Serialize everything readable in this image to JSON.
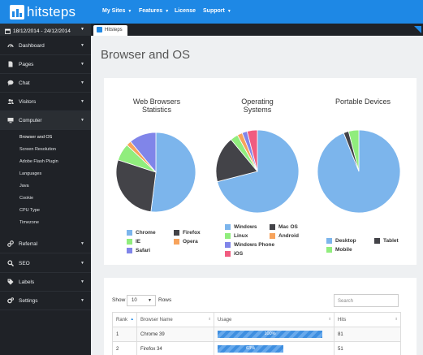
{
  "app": {
    "logo_text": "hitsteps",
    "brand_color": "#1e88e5"
  },
  "topnav": [
    {
      "label": "My Sites",
      "has_caret": true
    },
    {
      "label": "Features",
      "has_caret": true
    },
    {
      "label": "License",
      "has_caret": false
    },
    {
      "label": "Support",
      "has_caret": true
    }
  ],
  "sidebar": {
    "date_range": "18/12/2014 - 24/12/2014",
    "items": [
      {
        "label": "Dashboard",
        "icon": "dashboard-icon"
      },
      {
        "label": "Pages",
        "icon": "file-icon"
      },
      {
        "label": "Chat",
        "icon": "chat-bubble-icon"
      },
      {
        "label": "Visitors",
        "icon": "users-icon"
      },
      {
        "label": "Computer",
        "icon": "monitor-icon"
      },
      {
        "label": "Referral",
        "icon": "link-icon"
      },
      {
        "label": "SEO",
        "icon": "search-icon"
      },
      {
        "label": "Labels",
        "icon": "tag-icon"
      },
      {
        "label": "Settings",
        "icon": "gears-icon"
      }
    ],
    "computer_subitems": [
      "Browser and OS",
      "Screen Resolution",
      "Adobe Flash Plugin",
      "Languages",
      "Java",
      "Cookie",
      "CPU Type",
      "Timezone"
    ]
  },
  "tab": {
    "label": "Hitsteps"
  },
  "page_title": "Browser and OS",
  "charts": [
    {
      "title": "Web Browsers Statistics",
      "chart_data": {
        "type": "pie",
        "title": "Web Browsers Statistics",
        "slices": [
          {
            "label": "Chrome",
            "value": 52,
            "color": "#7cb5ec"
          },
          {
            "label": "Firefox",
            "value": 28,
            "color": "#434348"
          },
          {
            "label": "IE",
            "value": 7,
            "color": "#90ed7d"
          },
          {
            "label": "Opera",
            "value": 2,
            "color": "#f7a35c"
          },
          {
            "label": "Safari",
            "value": 11,
            "color": "#8085e9"
          }
        ],
        "legend_placement": "bottom"
      }
    },
    {
      "title": "Operating Systems",
      "chart_data": {
        "type": "pie",
        "title": "Operating Systems",
        "slices": [
          {
            "label": "Windows",
            "value": 71,
            "color": "#7cb5ec"
          },
          {
            "label": "Mac OS",
            "value": 18,
            "color": "#434348"
          },
          {
            "label": "Linux",
            "value": 3,
            "color": "#90ed7d"
          },
          {
            "label": "Android",
            "value": 2,
            "color": "#f7a35c"
          },
          {
            "label": "Windows Phone",
            "value": 2,
            "color": "#8085e9"
          },
          {
            "label": "iOS",
            "value": 4,
            "color": "#f15c80"
          }
        ],
        "legend_placement": "bottom"
      }
    },
    {
      "title": "Portable Devices",
      "chart_data": {
        "type": "pie",
        "title": "Portable Devices",
        "slices": [
          {
            "label": "Desktop",
            "value": 94,
            "color": "#7cb5ec"
          },
          {
            "label": "Tablet",
            "value": 2,
            "color": "#434348"
          },
          {
            "label": "Mobile",
            "value": 4,
            "color": "#90ed7d"
          }
        ],
        "legend_placement": "bottom"
      }
    }
  ],
  "table": {
    "show_label": "Show",
    "page_size": "10",
    "rows_label": "Rows",
    "search_placeholder": "Search",
    "columns": [
      "Rank",
      "Browser Name",
      "Usage",
      "Hits"
    ],
    "rows": [
      {
        "rank": "1",
        "name": "Chrome 39",
        "usage": 100,
        "usage_label": "100%",
        "hits": "81"
      },
      {
        "rank": "2",
        "name": "Firefox 34",
        "usage": 63,
        "usage_label": "63%",
        "hits": "51"
      }
    ]
  }
}
